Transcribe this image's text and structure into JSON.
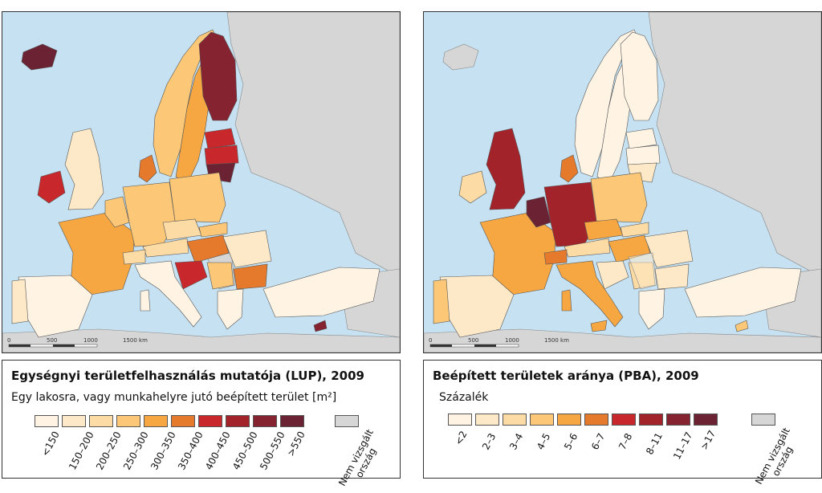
{
  "maps": [
    {
      "title": "Egységnyi területfelhasználás mutatója (LUP), 2009",
      "subtitle": "Egy lakosra, vagy munkahelyre jutó beépített terület [m²]",
      "scale_labels": [
        "0",
        "500",
        "1000",
        "1500 km"
      ],
      "legend": [
        {
          "label": "<150",
          "color": "#fff4e4"
        },
        {
          "label": "150–200",
          "color": "#fde9c8"
        },
        {
          "label": "200–250",
          "color": "#fddba5"
        },
        {
          "label": "250–300",
          "color": "#fcc877"
        },
        {
          "label": "300–350",
          "color": "#f6a742"
        },
        {
          "label": "350–400",
          "color": "#e67a2c"
        },
        {
          "label": "400–450",
          "color": "#c8282c"
        },
        {
          "label": "450–500",
          "color": "#a3232b"
        },
        {
          "label": "500–550",
          "color": "#862331"
        },
        {
          "label": ">550",
          "color": "#6b2233"
        }
      ],
      "nodata": {
        "label_line1": "Nem vizsgált",
        "label_line2": "ország",
        "color": "#d6d6d6"
      }
    },
    {
      "title": "Beépített területek aránya (PBA), 2009",
      "subtitle": "Százalék",
      "scale_labels": [
        "0",
        "500",
        "1000",
        "1500 km"
      ],
      "legend": [
        {
          "label": "<2",
          "color": "#fff4e4"
        },
        {
          "label": "2–3",
          "color": "#fde9c8"
        },
        {
          "label": "3–4",
          "color": "#fddba5"
        },
        {
          "label": "4–5",
          "color": "#fcc877"
        },
        {
          "label": "5–6",
          "color": "#f6a742"
        },
        {
          "label": "6–7",
          "color": "#e67a2c"
        },
        {
          "label": "7–8",
          "color": "#c8282c"
        },
        {
          "label": "8–11",
          "color": "#a3232b"
        },
        {
          "label": "11–17",
          "color": "#862331"
        },
        {
          "label": ">17",
          "color": "#6b2233"
        }
      ],
      "nodata": {
        "label_line1": "Nem vizsgált",
        "label_line2": "ország",
        "color": "#d6d6d6"
      }
    }
  ]
}
